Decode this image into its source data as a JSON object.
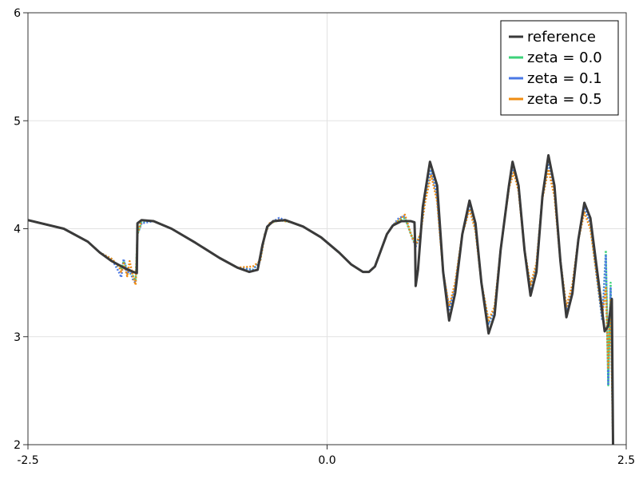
{
  "chart_data": {
    "type": "line",
    "xlim": [
      -2.5,
      2.5
    ],
    "ylim": [
      2,
      6
    ],
    "x_ticks": [
      -2.5,
      0.0,
      2.5
    ],
    "x_tick_labels": [
      "-2.5",
      "0.0",
      "2.5"
    ],
    "y_ticks": [
      2,
      3,
      4,
      5,
      6
    ],
    "y_tick_labels": [
      "2",
      "3",
      "4",
      "5",
      "6"
    ],
    "grid": true,
    "legend_position": "top-right",
    "series": [
      {
        "name": "reference",
        "color": "#3a3a3a",
        "style": "solid",
        "points": [
          [
            -2.5,
            4.08
          ],
          [
            -2.2,
            4.0
          ],
          [
            -2.0,
            3.88
          ],
          [
            -1.9,
            3.78
          ],
          [
            -1.8,
            3.7
          ],
          [
            -1.7,
            3.64
          ],
          [
            -1.62,
            3.6
          ],
          [
            -1.59,
            3.59
          ],
          [
            -1.585,
            4.05
          ],
          [
            -1.55,
            4.08
          ],
          [
            -1.45,
            4.07
          ],
          [
            -1.3,
            4.0
          ],
          [
            -1.1,
            3.87
          ],
          [
            -0.9,
            3.73
          ],
          [
            -0.75,
            3.64
          ],
          [
            -0.65,
            3.6
          ],
          [
            -0.58,
            3.62
          ],
          [
            -0.54,
            3.85
          ],
          [
            -0.5,
            4.02
          ],
          [
            -0.45,
            4.07
          ],
          [
            -0.35,
            4.08
          ],
          [
            -0.2,
            4.02
          ],
          [
            -0.05,
            3.92
          ],
          [
            0.1,
            3.78
          ],
          [
            0.2,
            3.67
          ],
          [
            0.3,
            3.6
          ],
          [
            0.35,
            3.6
          ],
          [
            0.4,
            3.65
          ],
          [
            0.45,
            3.8
          ],
          [
            0.5,
            3.95
          ],
          [
            0.55,
            4.03
          ],
          [
            0.62,
            4.07
          ],
          [
            0.7,
            4.07
          ],
          [
            0.73,
            4.06
          ],
          [
            0.735,
            3.9
          ],
          [
            0.74,
            3.47
          ],
          [
            0.76,
            3.62
          ],
          [
            0.8,
            4.2
          ],
          [
            0.86,
            4.62
          ],
          [
            0.92,
            4.4
          ],
          [
            0.97,
            3.6
          ],
          [
            1.02,
            3.15
          ],
          [
            1.07,
            3.4
          ],
          [
            1.13,
            3.95
          ],
          [
            1.19,
            4.26
          ],
          [
            1.24,
            4.05
          ],
          [
            1.29,
            3.5
          ],
          [
            1.35,
            3.03
          ],
          [
            1.4,
            3.2
          ],
          [
            1.45,
            3.8
          ],
          [
            1.52,
            4.4
          ],
          [
            1.55,
            4.62
          ],
          [
            1.6,
            4.4
          ],
          [
            1.65,
            3.8
          ],
          [
            1.7,
            3.38
          ],
          [
            1.75,
            3.6
          ],
          [
            1.8,
            4.3
          ],
          [
            1.85,
            4.68
          ],
          [
            1.9,
            4.4
          ],
          [
            1.95,
            3.7
          ],
          [
            2.0,
            3.18
          ],
          [
            2.05,
            3.4
          ],
          [
            2.1,
            3.9
          ],
          [
            2.15,
            4.24
          ],
          [
            2.2,
            4.1
          ],
          [
            2.27,
            3.5
          ],
          [
            2.32,
            3.05
          ],
          [
            2.35,
            3.1
          ],
          [
            2.38,
            3.35
          ],
          [
            2.39,
            2.0
          ]
        ]
      },
      {
        "name": "zeta = 0.0",
        "color": "#3dd27a",
        "style": "dotted",
        "points": [
          [
            -2.5,
            4.08
          ],
          [
            -2.2,
            4.0
          ],
          [
            -2.0,
            3.88
          ],
          [
            -1.9,
            3.78
          ],
          [
            -1.8,
            3.72
          ],
          [
            -1.72,
            3.62
          ],
          [
            -1.7,
            3.7
          ],
          [
            -1.66,
            3.6
          ],
          [
            -1.62,
            3.56
          ],
          [
            -1.6,
            3.52
          ],
          [
            -1.585,
            3.95
          ],
          [
            -1.55,
            4.06
          ],
          [
            -1.45,
            4.07
          ],
          [
            -1.3,
            4.0
          ],
          [
            -1.1,
            3.87
          ],
          [
            -0.9,
            3.73
          ],
          [
            -0.75,
            3.64
          ],
          [
            -0.62,
            3.62
          ],
          [
            -0.56,
            3.7
          ],
          [
            -0.52,
            3.95
          ],
          [
            -0.48,
            4.05
          ],
          [
            -0.4,
            4.08
          ],
          [
            -0.3,
            4.06
          ],
          [
            -0.2,
            4.02
          ],
          [
            -0.05,
            3.92
          ],
          [
            0.1,
            3.78
          ],
          [
            0.2,
            3.67
          ],
          [
            0.3,
            3.6
          ],
          [
            0.35,
            3.6
          ],
          [
            0.4,
            3.65
          ],
          [
            0.45,
            3.8
          ],
          [
            0.5,
            3.95
          ],
          [
            0.55,
            4.03
          ],
          [
            0.6,
            4.08
          ],
          [
            0.65,
            4.1
          ],
          [
            0.7,
            3.95
          ],
          [
            0.74,
            3.85
          ],
          [
            0.78,
            3.95
          ],
          [
            0.82,
            4.3
          ],
          [
            0.87,
            4.55
          ],
          [
            0.92,
            4.3
          ],
          [
            0.97,
            3.6
          ],
          [
            1.02,
            3.25
          ],
          [
            1.07,
            3.45
          ],
          [
            1.13,
            3.95
          ],
          [
            1.19,
            4.22
          ],
          [
            1.24,
            4.0
          ],
          [
            1.29,
            3.5
          ],
          [
            1.35,
            3.12
          ],
          [
            1.4,
            3.25
          ],
          [
            1.45,
            3.8
          ],
          [
            1.52,
            4.4
          ],
          [
            1.56,
            4.58
          ],
          [
            1.6,
            4.4
          ],
          [
            1.65,
            3.8
          ],
          [
            1.7,
            3.45
          ],
          [
            1.75,
            3.65
          ],
          [
            1.8,
            4.3
          ],
          [
            1.85,
            4.62
          ],
          [
            1.9,
            4.35
          ],
          [
            1.95,
            3.7
          ],
          [
            2.0,
            3.25
          ],
          [
            2.05,
            3.45
          ],
          [
            2.1,
            3.9
          ],
          [
            2.15,
            4.2
          ],
          [
            2.2,
            4.05
          ],
          [
            2.25,
            3.6
          ],
          [
            2.3,
            3.15
          ],
          [
            2.33,
            3.8
          ],
          [
            2.35,
            2.55
          ],
          [
            2.37,
            3.5
          ],
          [
            2.39,
            2.0
          ]
        ]
      },
      {
        "name": "zeta = 0.1",
        "color": "#4a78e6",
        "style": "dotted",
        "points": [
          [
            -2.5,
            4.08
          ],
          [
            -2.2,
            4.0
          ],
          [
            -2.0,
            3.88
          ],
          [
            -1.9,
            3.78
          ],
          [
            -1.8,
            3.72
          ],
          [
            -1.74,
            3.6
          ],
          [
            -1.72,
            3.55
          ],
          [
            -1.7,
            3.72
          ],
          [
            -1.67,
            3.58
          ],
          [
            -1.65,
            3.62
          ],
          [
            -1.62,
            3.52
          ],
          [
            -1.6,
            3.5
          ],
          [
            -1.585,
            3.95
          ],
          [
            -1.55,
            4.05
          ],
          [
            -1.45,
            4.07
          ],
          [
            -1.3,
            4.0
          ],
          [
            -1.1,
            3.87
          ],
          [
            -0.9,
            3.73
          ],
          [
            -0.75,
            3.64
          ],
          [
            -0.62,
            3.62
          ],
          [
            -0.56,
            3.7
          ],
          [
            -0.52,
            3.95
          ],
          [
            -0.48,
            4.05
          ],
          [
            -0.4,
            4.1
          ],
          [
            -0.3,
            4.06
          ],
          [
            -0.2,
            4.02
          ],
          [
            -0.05,
            3.92
          ],
          [
            0.1,
            3.78
          ],
          [
            0.2,
            3.67
          ],
          [
            0.3,
            3.6
          ],
          [
            0.35,
            3.6
          ],
          [
            0.4,
            3.65
          ],
          [
            0.45,
            3.8
          ],
          [
            0.5,
            3.95
          ],
          [
            0.55,
            4.03
          ],
          [
            0.6,
            4.1
          ],
          [
            0.65,
            4.12
          ],
          [
            0.7,
            3.95
          ],
          [
            0.74,
            3.83
          ],
          [
            0.78,
            3.95
          ],
          [
            0.82,
            4.3
          ],
          [
            0.87,
            4.55
          ],
          [
            0.92,
            4.3
          ],
          [
            0.97,
            3.6
          ],
          [
            1.02,
            3.25
          ],
          [
            1.07,
            3.45
          ],
          [
            1.13,
            3.95
          ],
          [
            1.19,
            4.22
          ],
          [
            1.24,
            4.0
          ],
          [
            1.29,
            3.5
          ],
          [
            1.35,
            3.12
          ],
          [
            1.4,
            3.25
          ],
          [
            1.45,
            3.8
          ],
          [
            1.52,
            4.4
          ],
          [
            1.56,
            4.58
          ],
          [
            1.6,
            4.4
          ],
          [
            1.65,
            3.8
          ],
          [
            1.7,
            3.45
          ],
          [
            1.75,
            3.65
          ],
          [
            1.8,
            4.3
          ],
          [
            1.85,
            4.62
          ],
          [
            1.9,
            4.35
          ],
          [
            1.95,
            3.7
          ],
          [
            2.0,
            3.25
          ],
          [
            2.05,
            3.45
          ],
          [
            2.1,
            3.9
          ],
          [
            2.15,
            4.2
          ],
          [
            2.2,
            4.05
          ],
          [
            2.25,
            3.6
          ],
          [
            2.3,
            3.15
          ],
          [
            2.33,
            3.75
          ],
          [
            2.35,
            2.55
          ],
          [
            2.37,
            3.45
          ],
          [
            2.39,
            2.0
          ]
        ]
      },
      {
        "name": "zeta = 0.5",
        "color": "#ef8c11",
        "style": "dotted",
        "points": [
          [
            -2.5,
            4.08
          ],
          [
            -2.2,
            4.0
          ],
          [
            -2.0,
            3.88
          ],
          [
            -1.9,
            3.78
          ],
          [
            -1.8,
            3.72
          ],
          [
            -1.74,
            3.65
          ],
          [
            -1.72,
            3.6
          ],
          [
            -1.7,
            3.68
          ],
          [
            -1.67,
            3.56
          ],
          [
            -1.65,
            3.7
          ],
          [
            -1.62,
            3.55
          ],
          [
            -1.6,
            3.48
          ],
          [
            -1.585,
            3.95
          ],
          [
            -1.55,
            4.08
          ],
          [
            -1.45,
            4.07
          ],
          [
            -1.3,
            4.0
          ],
          [
            -1.1,
            3.87
          ],
          [
            -0.9,
            3.73
          ],
          [
            -0.75,
            3.64
          ],
          [
            -0.62,
            3.65
          ],
          [
            -0.56,
            3.7
          ],
          [
            -0.52,
            3.95
          ],
          [
            -0.48,
            4.05
          ],
          [
            -0.4,
            4.08
          ],
          [
            -0.3,
            4.06
          ],
          [
            -0.2,
            4.02
          ],
          [
            -0.05,
            3.92
          ],
          [
            0.1,
            3.78
          ],
          [
            0.2,
            3.67
          ],
          [
            0.3,
            3.6
          ],
          [
            0.35,
            3.6
          ],
          [
            0.4,
            3.65
          ],
          [
            0.45,
            3.8
          ],
          [
            0.5,
            3.95
          ],
          [
            0.55,
            4.03
          ],
          [
            0.6,
            4.08
          ],
          [
            0.65,
            4.13
          ],
          [
            0.7,
            3.95
          ],
          [
            0.74,
            3.85
          ],
          [
            0.78,
            3.95
          ],
          [
            0.82,
            4.25
          ],
          [
            0.87,
            4.5
          ],
          [
            0.92,
            4.25
          ],
          [
            0.97,
            3.6
          ],
          [
            1.02,
            3.28
          ],
          [
            1.07,
            3.5
          ],
          [
            1.13,
            3.95
          ],
          [
            1.19,
            4.18
          ],
          [
            1.24,
            3.98
          ],
          [
            1.29,
            3.5
          ],
          [
            1.35,
            3.15
          ],
          [
            1.4,
            3.28
          ],
          [
            1.45,
            3.8
          ],
          [
            1.52,
            4.38
          ],
          [
            1.56,
            4.52
          ],
          [
            1.6,
            4.35
          ],
          [
            1.65,
            3.8
          ],
          [
            1.7,
            3.48
          ],
          [
            1.75,
            3.68
          ],
          [
            1.8,
            4.28
          ],
          [
            1.85,
            4.55
          ],
          [
            1.9,
            4.3
          ],
          [
            1.95,
            3.7
          ],
          [
            2.0,
            3.28
          ],
          [
            2.05,
            3.48
          ],
          [
            2.1,
            3.9
          ],
          [
            2.15,
            4.15
          ],
          [
            2.2,
            4.0
          ],
          [
            2.25,
            3.6
          ],
          [
            2.3,
            3.2
          ],
          [
            2.33,
            3.45
          ],
          [
            2.35,
            2.7
          ],
          [
            2.37,
            3.35
          ],
          [
            2.39,
            2.0
          ]
        ]
      }
    ]
  }
}
